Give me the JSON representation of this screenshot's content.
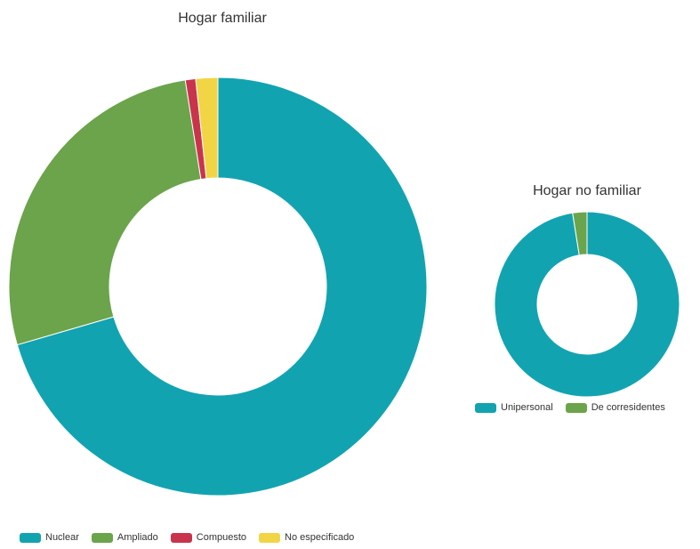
{
  "chart_data": [
    {
      "type": "pie",
      "title": "Hogar familiar",
      "categories": [
        "Nuclear",
        "Ampliado",
        "Compuesto",
        "No especificado"
      ],
      "values": [
        70.5,
        27.0,
        0.8,
        1.7
      ],
      "colors": [
        "#12a3b1",
        "#6ba44b",
        "#c9344d",
        "#f2d544"
      ],
      "donut": true,
      "legend_position": "bottom"
    },
    {
      "type": "pie",
      "title": "Hogar no familiar",
      "categories": [
        "Unipersonal",
        "De corresidentes"
      ],
      "values": [
        97.5,
        2.5
      ],
      "colors": [
        "#12a3b1",
        "#6ba44b"
      ],
      "donut": true,
      "legend_position": "bottom"
    }
  ]
}
